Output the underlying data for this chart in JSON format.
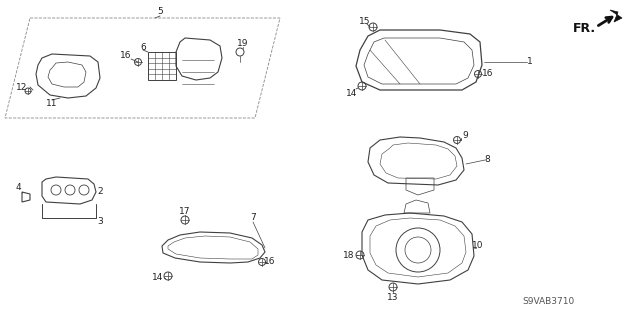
{
  "diagram_code": "S9VAB3710",
  "background_color": "#ffffff",
  "line_color": "#404040",
  "fr_label": "FR."
}
